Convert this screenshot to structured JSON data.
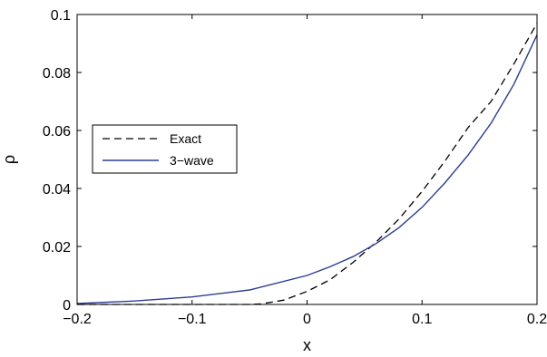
{
  "chart_data": {
    "type": "line",
    "xlabel": "x",
    "ylabel": "ρ",
    "xlim": [
      -0.2,
      0.2
    ],
    "ylim": [
      0,
      0.1
    ],
    "xticks": [
      -0.2,
      -0.1,
      0,
      0.1,
      0.2
    ],
    "xtick_labels": [
      "−0.2",
      "−0.1",
      "0",
      "0.1",
      "0.2"
    ],
    "yticks": [
      0,
      0.02,
      0.04,
      0.06,
      0.08,
      0.1
    ],
    "ytick_labels": [
      "0",
      "0.02",
      "0.04",
      "0.06",
      "0.08",
      "0.1"
    ],
    "grid": false,
    "legend_position": "left-middle",
    "series": [
      {
        "name": "Exact",
        "color": "#000000",
        "style": "dashed",
        "x": [
          -0.2,
          -0.1,
          -0.05,
          -0.04,
          -0.02,
          0,
          0.02,
          0.04,
          0.06,
          0.08,
          0.1,
          0.12,
          0.14,
          0.16,
          0.18,
          0.2
        ],
        "y": [
          0,
          0,
          0,
          0.0002,
          0.0015,
          0.0045,
          0.0085,
          0.0145,
          0.0215,
          0.0295,
          0.039,
          0.0495,
          0.061,
          0.07,
          0.083,
          0.097
        ]
      },
      {
        "name": "3−wave",
        "color": "#2b3c8f",
        "style": "solid",
        "x": [
          -0.2,
          -0.15,
          -0.1,
          -0.05,
          0,
          0.02,
          0.04,
          0.06,
          0.08,
          0.1,
          0.12,
          0.14,
          0.16,
          0.18,
          0.2
        ],
        "y": [
          0.0003,
          0.0012,
          0.0026,
          0.005,
          0.01,
          0.013,
          0.0165,
          0.021,
          0.0265,
          0.0335,
          0.042,
          0.0515,
          0.0625,
          0.076,
          0.093
        ]
      }
    ]
  }
}
